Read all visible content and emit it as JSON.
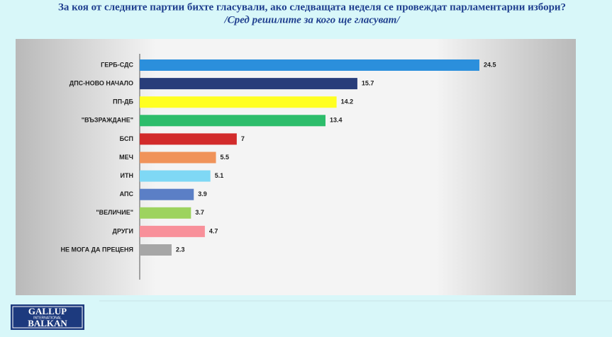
{
  "chart_data": {
    "type": "bar",
    "orientation": "horizontal",
    "title": "За коя от следните партии бихте  гласували,  ако следващата неделя се провеждат парламентарни избори?",
    "subtitle": "/Сред решилите за кого ще гласуват/",
    "categories": [
      "ГЕРБ-СДС",
      "ДПС-НОВО НАЧАЛО",
      "ПП-ДБ",
      "\"ВЪЗРАЖДАНЕ\"",
      "БСП",
      "МЕЧ",
      "ИТН",
      "АПС",
      "\"ВЕЛИЧИЕ\"",
      "ДРУГИ",
      "НЕ МОГА ДА ПРЕЦЕНЯ"
    ],
    "values": [
      24.5,
      15.7,
      14.2,
      13.4,
      7,
      5.5,
      5.1,
      3.9,
      3.7,
      4.7,
      2.3
    ],
    "colors": [
      "#2b8fdc",
      "#283d7a",
      "#ffff22",
      "#2dbd6b",
      "#d22b2b",
      "#f0935a",
      "#7fd8f5",
      "#5b7fc6",
      "#9dd35f",
      "#f8909a",
      "#a6a6a6"
    ]
  },
  "logo": {
    "line1": "GALLUP",
    "line2": "INTERNATIONAL",
    "line3": "BALKAN"
  }
}
